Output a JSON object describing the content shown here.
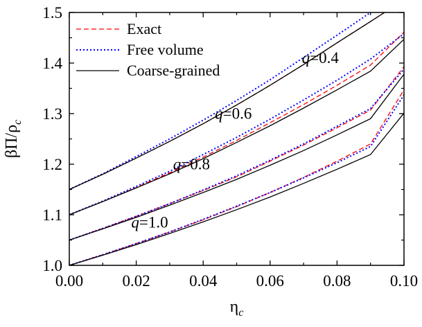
{
  "chart_data": {
    "type": "line",
    "title": "",
    "xlabel": "η",
    "xlabel_sub": "c",
    "ylabel": "βΠ/ρ",
    "ylabel_sub": "c",
    "xlim": [
      0.0,
      0.1
    ],
    "ylim": [
      1.0,
      1.5
    ],
    "x_ticks": [
      "0.00",
      "0.02",
      "0.04",
      "0.06",
      "0.08",
      "0.10"
    ],
    "y_ticks": [
      "1.0",
      "1.1",
      "1.2",
      "1.3",
      "1.4",
      "1.5"
    ],
    "grid": false,
    "legend_position": "top-left",
    "legend": [
      {
        "label": "Exact",
        "color": "#ff0000",
        "style": "dashed"
      },
      {
        "label": "Free volume",
        "color": "#0000ff",
        "style": "dotted"
      },
      {
        "label": "Coarse-grained",
        "color": "#000000",
        "style": "solid"
      }
    ],
    "x": [
      0.0,
      0.01,
      0.02,
      0.03,
      0.04,
      0.05,
      0.06,
      0.07,
      0.08,
      0.09,
      0.1
    ],
    "groups": [
      {
        "annotation": "q=0.4",
        "annotation_x": 0.0695,
        "annotation_y": 1.4,
        "series": [
          {
            "name": "Exact",
            "values": [
              1.15,
              1.18,
              1.212,
              1.245,
              1.28,
              1.317,
              1.356,
              1.397,
              1.44,
              1.482,
              1.525
            ]
          },
          {
            "name": "Free volume",
            "values": [
              1.15,
              1.181,
              1.215,
              1.25,
              1.287,
              1.326,
              1.367,
              1.411,
              1.455,
              1.5,
              1.545
            ]
          },
          {
            "name": "Coarse-grained",
            "values": [
              1.15,
              1.18,
              1.212,
              1.245,
              1.28,
              1.317,
              1.356,
              1.397,
              1.44,
              1.482,
              1.525
            ]
          }
        ]
      },
      {
        "annotation": "q=0.6",
        "annotation_x": 0.0435,
        "annotation_y": 1.29,
        "series": [
          {
            "name": "Exact",
            "values": [
              1.1,
              1.126,
              1.154,
              1.183,
              1.214,
              1.247,
              1.282,
              1.318,
              1.356,
              1.396,
              1.461
            ]
          },
          {
            "name": "Free volume",
            "values": [
              1.1,
              1.127,
              1.156,
              1.186,
              1.219,
              1.253,
              1.289,
              1.327,
              1.366,
              1.408,
              1.458
            ]
          },
          {
            "name": "Coarse-grained",
            "values": [
              1.1,
              1.126,
              1.153,
              1.181,
              1.211,
              1.243,
              1.276,
              1.311,
              1.347,
              1.384,
              1.447
            ]
          }
        ]
      },
      {
        "annotation": "q=0.8",
        "annotation_x": 0.031,
        "annotation_y": 1.19,
        "series": [
          {
            "name": "Exact",
            "values": [
              1.05,
              1.073,
              1.097,
              1.122,
              1.148,
              1.175,
              1.206,
              1.238,
              1.272,
              1.307,
              1.393
            ]
          },
          {
            "name": "Free volume",
            "values": [
              1.05,
              1.073,
              1.097,
              1.122,
              1.149,
              1.177,
              1.208,
              1.24,
              1.275,
              1.31,
              1.388
            ]
          },
          {
            "name": "Coarse-grained",
            "values": [
              1.05,
              1.072,
              1.095,
              1.119,
              1.144,
              1.17,
              1.198,
              1.227,
              1.258,
              1.29,
              1.378
            ]
          }
        ]
      },
      {
        "annotation": "q=1.0",
        "annotation_x": 0.0185,
        "annotation_y": 1.075,
        "series": [
          {
            "name": "Exact",
            "values": [
              1.0,
              1.021,
              1.043,
              1.066,
              1.09,
              1.116,
              1.144,
              1.174,
              1.206,
              1.24,
              1.347
            ]
          },
          {
            "name": "Free volume",
            "values": [
              1.0,
              1.021,
              1.043,
              1.066,
              1.091,
              1.117,
              1.144,
              1.173,
              1.203,
              1.235,
              1.337
            ]
          },
          {
            "name": "Coarse-grained",
            "values": [
              1.0,
              1.02,
              1.041,
              1.063,
              1.086,
              1.11,
              1.135,
              1.162,
              1.19,
              1.219,
              1.301
            ]
          }
        ]
      }
    ]
  }
}
